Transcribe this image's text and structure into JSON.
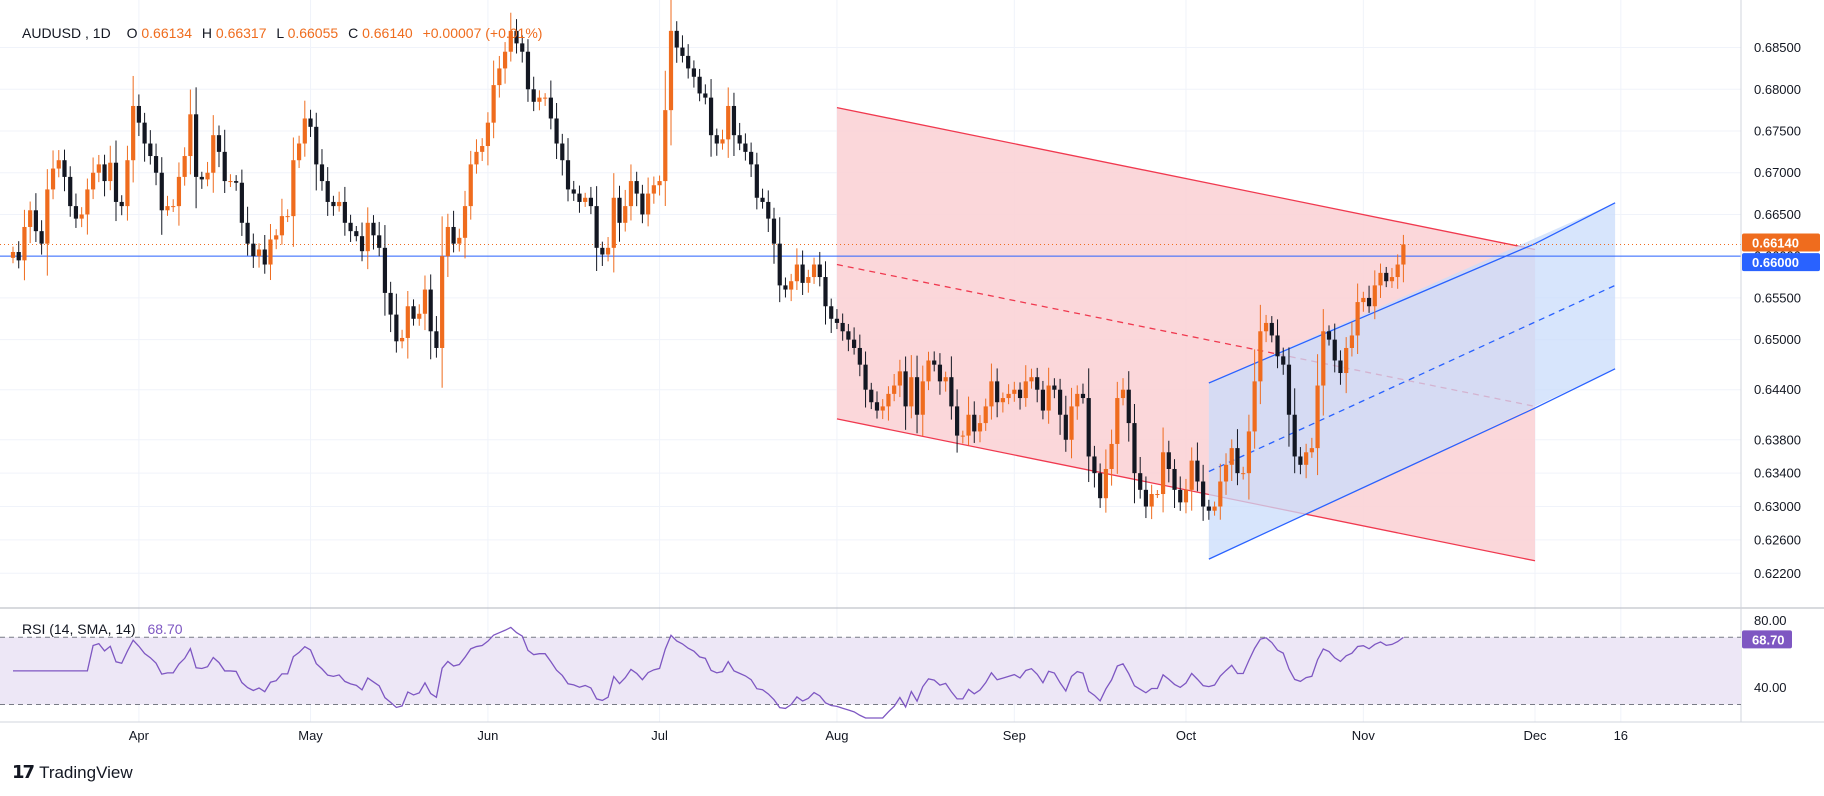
{
  "header": {
    "symbol": "AUDUSD",
    "interval": "1D",
    "open_label": "O",
    "open": "0.66134",
    "high_label": "H",
    "high": "0.66317",
    "low_label": "L",
    "low": "0.66055",
    "close_label": "C",
    "close": "0.66140",
    "change": "+0.00007 (+0.01%)"
  },
  "brand": {
    "name": "TradingView"
  },
  "colors": {
    "up": "#ef6c1e",
    "down": "#131722",
    "red_channel_line": "#f0394f",
    "red_channel_fill": "#fbd3d6",
    "blue_channel_line": "#2962ff",
    "blue_channel_fill": "#c9dcfb",
    "rsi_line": "#7e57c2",
    "rsi_band": "#ede7f6",
    "price_tag": "#ef6c1e",
    "level_tag": "#2962ff"
  },
  "chart_data": {
    "type": "candlestick",
    "y_range": [
      0.6188,
      0.6895
    ],
    "price_ticks": [
      "0.68500",
      "0.68000",
      "0.67500",
      "0.67000",
      "0.66500",
      "0.66000",
      "0.65500",
      "0.65000",
      "0.64400",
      "0.63800",
      "0.63400",
      "0.63000",
      "0.62600",
      "0.62200"
    ],
    "price_tick_values": [
      0.685,
      0.68,
      0.675,
      0.67,
      0.665,
      0.66,
      0.655,
      0.65,
      0.644,
      0.638,
      0.634,
      0.63,
      0.626,
      0.622
    ],
    "x_labels": [
      {
        "text": "Apr",
        "day": 22
      },
      {
        "text": "May",
        "day": 52
      },
      {
        "text": "Jun",
        "day": 83
      },
      {
        "text": "Jul",
        "day": 113
      },
      {
        "text": "Aug",
        "day": 144
      },
      {
        "text": "Sep",
        "day": 175
      },
      {
        "text": "Oct",
        "day": 205
      },
      {
        "text": "Nov",
        "day": 236
      },
      {
        "text": "Dec",
        "day": 266
      },
      {
        "text": "16",
        "day": 281
      }
    ],
    "x_range_days": [
      0,
      302
    ],
    "start_close": 0.6598,
    "closes": [
      0.6605,
      0.6595,
      0.6635,
      0.6655,
      0.663,
      0.6615,
      0.668,
      0.6705,
      0.6715,
      0.6695,
      0.666,
      0.6645,
      0.665,
      0.668,
      0.67,
      0.671,
      0.669,
      0.6712,
      0.6665,
      0.666,
      0.6715,
      0.678,
      0.676,
      0.6735,
      0.672,
      0.67,
      0.6655,
      0.666,
      0.666,
      0.6695,
      0.672,
      0.677,
      0.6695,
      0.6692,
      0.67,
      0.6745,
      0.6725,
      0.669,
      0.669,
      0.6688,
      0.664,
      0.6615,
      0.66,
      0.6608,
      0.659,
      0.662,
      0.6625,
      0.6648,
      0.6648,
      0.6715,
      0.6735,
      0.6765,
      0.6755,
      0.671,
      0.669,
      0.6665,
      0.666,
      0.6665,
      0.664,
      0.663,
      0.6624,
      0.6606,
      0.664,
      0.6625,
      0.661,
      0.6556,
      0.653,
      0.6498,
      0.6502,
      0.654,
      0.6525,
      0.6531,
      0.656,
      0.651,
      0.649,
      0.66,
      0.6635,
      0.6615,
      0.6622,
      0.666,
      0.671,
      0.6725,
      0.6732,
      0.676,
      0.6805,
      0.6825,
      0.6845,
      0.687,
      0.6855,
      0.6845,
      0.68,
      0.6785,
      0.679,
      0.679,
      0.6765,
      0.6735,
      0.6715,
      0.668,
      0.6675,
      0.6665,
      0.667,
      0.666,
      0.661,
      0.6602,
      0.661,
      0.667,
      0.664,
      0.666,
      0.669,
      0.6675,
      0.665,
      0.6675,
      0.6685,
      0.669,
      0.6775,
      0.687,
      0.685,
      0.684,
      0.6825,
      0.6815,
      0.6795,
      0.679,
      0.6745,
      0.6735,
      0.674,
      0.678,
      0.6745,
      0.6735,
      0.6725,
      0.671,
      0.667,
      0.6665,
      0.6645,
      0.6615,
      0.6565,
      0.656,
      0.657,
      0.659,
      0.6568,
      0.6575,
      0.659,
      0.6575,
      0.654,
      0.6525,
      0.652,
      0.651,
      0.65,
      0.649,
      0.647,
      0.644,
      0.6425,
      0.6415,
      0.642,
      0.6435,
      0.6445,
      0.6462,
      0.642,
      0.6455,
      0.641,
      0.645,
      0.6475,
      0.647,
      0.645,
      0.6455,
      0.642,
      0.6385,
      0.6385,
      0.641,
      0.639,
      0.64,
      0.642,
      0.645,
      0.6425,
      0.643,
      0.6435,
      0.644,
      0.643,
      0.645,
      0.6455,
      0.644,
      0.6415,
      0.6445,
      0.644,
      0.641,
      0.638,
      0.642,
      0.6435,
      0.643,
      0.636,
      0.634,
      0.631,
      0.6345,
      0.6375,
      0.643,
      0.644,
      0.64,
      0.634,
      0.632,
      0.63,
      0.6315,
      0.6315,
      0.6365,
      0.6345,
      0.632,
      0.6305,
      0.632,
      0.6355,
      0.633,
      0.63,
      0.6295,
      0.63,
      0.633,
      0.635,
      0.637,
      0.634,
      0.634,
      0.639,
      0.645,
      0.651,
      0.652,
      0.6505,
      0.648,
      0.647,
      0.641,
      0.636,
      0.635,
      0.6365,
      0.637,
      0.6445,
      0.651,
      0.65,
      0.6475,
      0.646,
      0.649,
      0.6505,
      0.6545,
      0.655,
      0.654,
      0.6565,
      0.658,
      0.657,
      0.6575,
      0.659,
      0.6614
    ],
    "range_factor": 0.38,
    "channels": {
      "red": {
        "upper": [
          [
            144,
            0.6778
          ],
          [
            266,
            0.6608
          ]
        ],
        "lower": [
          [
            144,
            0.6405
          ],
          [
            266,
            0.6235
          ]
        ],
        "mid": [
          [
            144,
            0.659
          ],
          [
            266,
            0.642
          ]
        ],
        "box_end_day": 266
      },
      "blue": {
        "upper": [
          [
            209,
            0.6448
          ],
          [
            266,
            0.6615
          ],
          [
            280,
            0.6664
          ]
        ],
        "lower": [
          [
            209,
            0.6237
          ],
          [
            266,
            0.6418
          ],
          [
            280,
            0.6465
          ]
        ],
        "mid": [
          [
            209,
            0.6342
          ],
          [
            280,
            0.6565
          ]
        ],
        "box_start_day": 209
      }
    },
    "lines": {
      "current_price": 0.6614,
      "current_price_label": "0.66140",
      "support_level": 0.66,
      "support_label": "0.66000"
    }
  },
  "rsi": {
    "label": "RSI (14, SMA, 14)",
    "value": "68.70",
    "value_num": 68.7,
    "y_range": [
      22,
      85
    ],
    "upper_band": 70,
    "lower_band": 30,
    "ticks": [
      "80.00",
      "40.00"
    ],
    "tick_values": [
      80,
      40
    ]
  }
}
